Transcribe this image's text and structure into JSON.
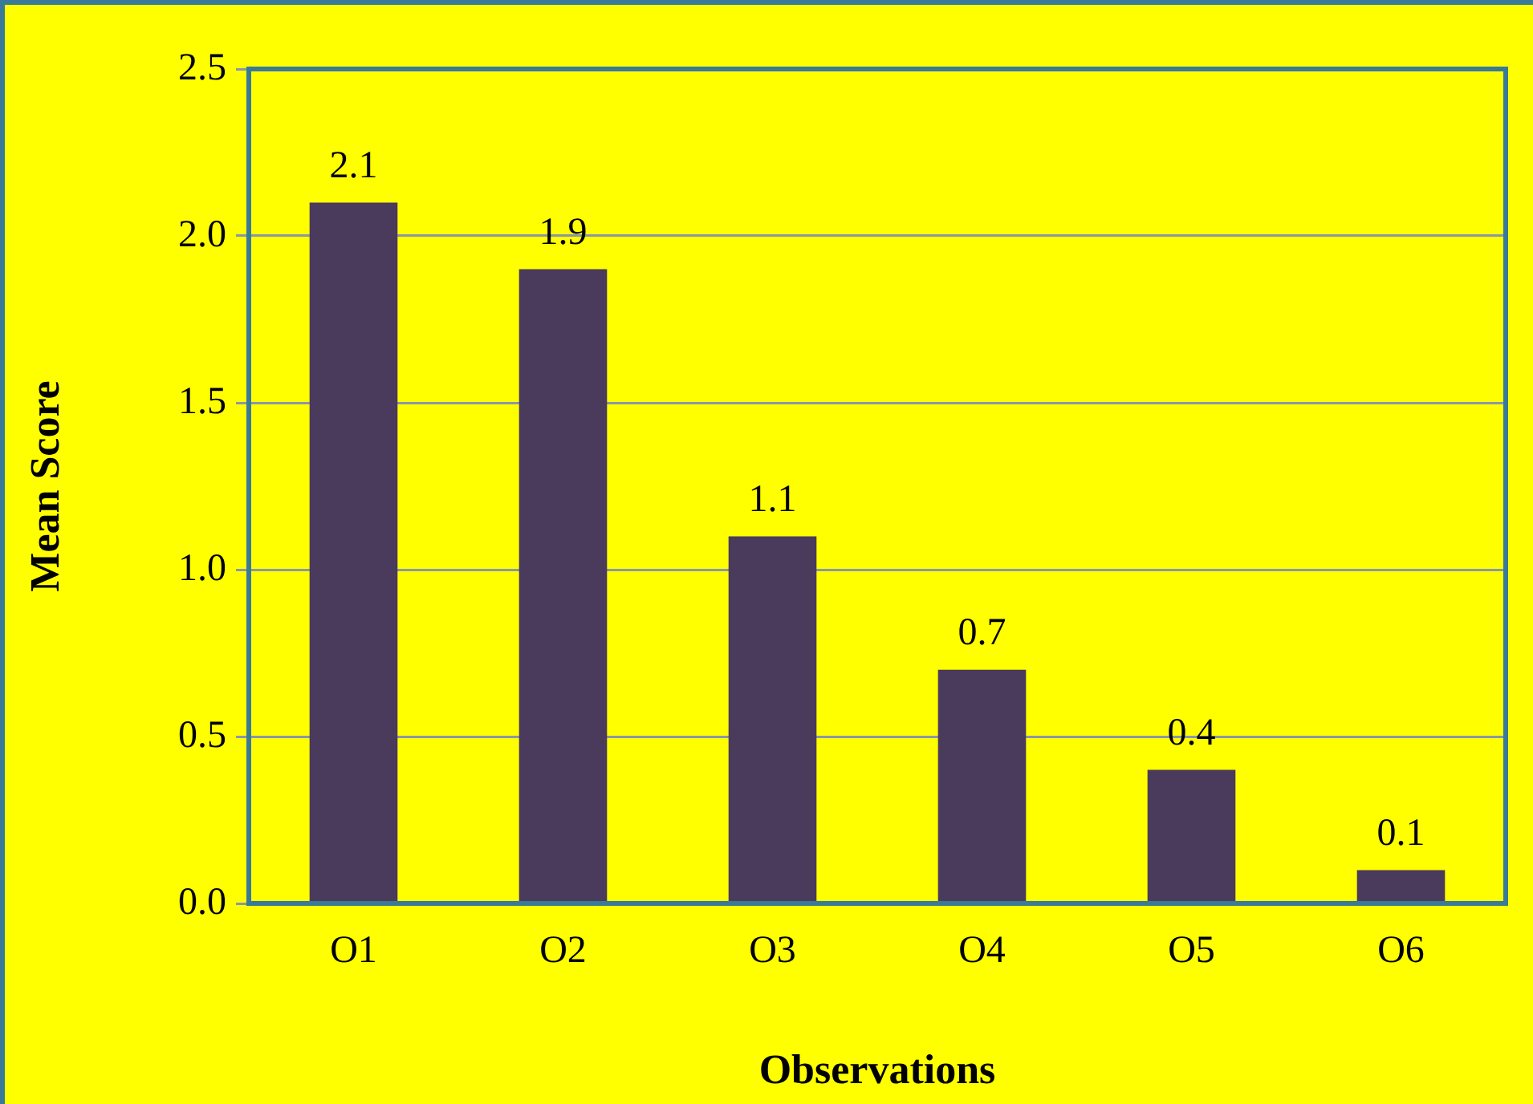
{
  "chart_data": {
    "type": "bar",
    "xlabel": "Observations",
    "ylabel": "Mean Score",
    "categories": [
      "O1",
      "O2",
      "O3",
      "O4",
      "O5",
      "O6"
    ],
    "values": [
      2.1,
      1.9,
      1.1,
      0.7,
      0.4,
      0.1
    ],
    "color": "#4a3a5c",
    "ylim": [
      0,
      2.5
    ],
    "yticks": [
      {
        "value": 0,
        "label": "0.0"
      },
      {
        "value": 0.5,
        "label": "0.5"
      },
      {
        "value": 1,
        "label": "1.0"
      },
      {
        "value": 1.5,
        "label": "1.5"
      },
      {
        "value": 2,
        "label": "2.0"
      },
      {
        "value": 2.5,
        "label": "2.5"
      }
    ],
    "grid": "y",
    "data_labels": true
  }
}
